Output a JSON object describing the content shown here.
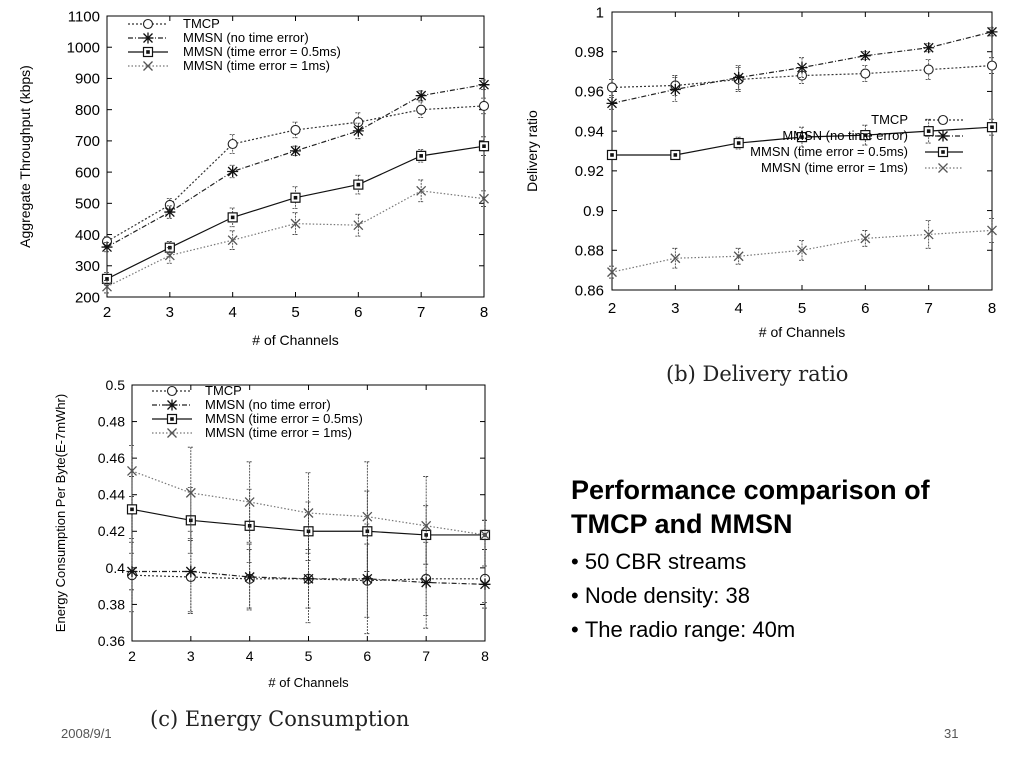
{
  "slide": {
    "title_line1": "Performance comparison of",
    "title_line2": "TMCP and MMSN",
    "bullets": [
      "50 CBR streams",
      "Node density: 38",
      "The radio range: 40m"
    ],
    "caption_b": "(b) Delivery ratio",
    "caption_c": "(c) Energy Consumption",
    "date": "2008/9/1",
    "page": "31"
  },
  "chart_data": [
    {
      "type": "line",
      "title": "",
      "xlabel": "# of Channels",
      "ylabel": "Aggregate Throughput (kbps)",
      "x": [
        2,
        3,
        4,
        5,
        6,
        7,
        8
      ],
      "xlim": [
        2,
        8
      ],
      "ylim": [
        200,
        1100
      ],
      "xticks": [
        2,
        3,
        4,
        5,
        6,
        7,
        8
      ],
      "yticks": [
        200,
        300,
        400,
        500,
        600,
        700,
        800,
        900,
        1000,
        1100
      ],
      "legend_position": "top-left",
      "series": [
        {
          "name": "TMCP",
          "marker": "circle",
          "style": "dotted",
          "values": [
            378,
            495,
            690,
            735,
            760,
            800,
            812
          ],
          "err": [
            15,
            20,
            30,
            25,
            30,
            25,
            25
          ]
        },
        {
          "name": "MMSN (no time error)",
          "marker": "asterisk",
          "style": "dashdot",
          "values": [
            360,
            472,
            602,
            668,
            732,
            845,
            880
          ],
          "err": [
            15,
            20,
            20,
            15,
            25,
            15,
            15
          ]
        },
        {
          "name": "MMSN (time error = 0.5ms)",
          "marker": "square",
          "style": "solid",
          "values": [
            258,
            358,
            455,
            518,
            560,
            652,
            683
          ],
          "err": [
            20,
            20,
            30,
            35,
            30,
            20,
            30
          ]
        },
        {
          "name": "MMSN (time error = 1ms)",
          "marker": "cross",
          "style": "dotted-gray",
          "values": [
            233,
            333,
            382,
            435,
            430,
            540,
            515
          ],
          "err": [
            20,
            25,
            30,
            35,
            35,
            35,
            25
          ]
        }
      ]
    },
    {
      "type": "line",
      "title": "",
      "xlabel": "# of Channels",
      "ylabel": "Delivery ratio",
      "x": [
        2,
        3,
        4,
        5,
        6,
        7,
        8
      ],
      "xlim": [
        2,
        8
      ],
      "ylim": [
        0.86,
        1
      ],
      "xticks": [
        2,
        3,
        4,
        5,
        6,
        7,
        8
      ],
      "yticks": [
        0.86,
        0.88,
        0.9,
        0.92,
        0.94,
        0.96,
        0.98,
        1
      ],
      "legend_position": "right",
      "series": [
        {
          "name": "TMCP",
          "marker": "circle",
          "style": "dotted",
          "values": [
            0.962,
            0.963,
            0.966,
            0.968,
            0.969,
            0.971,
            0.973
          ],
          "err": [
            0.004,
            0.005,
            0.006,
            0.004,
            0.004,
            0.005,
            0.004
          ]
        },
        {
          "name": "MMSN (no time error)",
          "marker": "asterisk",
          "style": "dashdot",
          "values": [
            0.954,
            0.961,
            0.967,
            0.972,
            0.978,
            0.982,
            0.99
          ],
          "err": [
            0.003,
            0.006,
            0.006,
            0.005,
            0.002,
            0.002,
            0.002
          ]
        },
        {
          "name": "MMSN (time error = 0.5ms)",
          "marker": "square",
          "style": "solid",
          "values": [
            0.928,
            0.928,
            0.934,
            0.937,
            0.938,
            0.94,
            0.942
          ],
          "err": [
            0.001,
            0.001,
            0.003,
            0.005,
            0.005,
            0.006,
            0.004
          ]
        },
        {
          "name": "MMSN (time error = 1ms)",
          "marker": "cross",
          "style": "dotted-gray",
          "values": [
            0.869,
            0.876,
            0.877,
            0.88,
            0.886,
            0.888,
            0.89
          ],
          "err": [
            0.003,
            0.005,
            0.004,
            0.005,
            0.004,
            0.007,
            0.006
          ]
        }
      ]
    },
    {
      "type": "line",
      "title": "",
      "xlabel": "# of Channels",
      "ylabel": "Energy Consumption Per Byte(E-7mWhr)",
      "x": [
        2,
        3,
        4,
        5,
        6,
        7,
        8
      ],
      "xlim": [
        2,
        8
      ],
      "ylim": [
        0.36,
        0.5
      ],
      "xticks": [
        2,
        3,
        4,
        5,
        6,
        7,
        8
      ],
      "yticks": [
        0.36,
        0.38,
        0.4,
        0.42,
        0.44,
        0.46,
        0.48,
        0.5
      ],
      "legend_position": "top-left",
      "series": [
        {
          "name": "TMCP",
          "marker": "circle",
          "style": "dotted",
          "values": [
            0.396,
            0.395,
            0.394,
            0.394,
            0.393,
            0.394,
            0.394
          ],
          "err": [
            0.02,
            0.02,
            0.016,
            0.016,
            0.02,
            0.02,
            0.016
          ]
        },
        {
          "name": "MMSN (no time error)",
          "marker": "asterisk",
          "style": "dashdot",
          "values": [
            0.398,
            0.398,
            0.395,
            0.394,
            0.394,
            0.392,
            0.391
          ],
          "err": [
            0.01,
            0.022,
            0.018,
            0.024,
            0.03,
            0.025,
            0.01
          ]
        },
        {
          "name": "MMSN (time error = 0.5ms)",
          "marker": "square",
          "style": "solid",
          "values": [
            0.432,
            0.426,
            0.423,
            0.42,
            0.42,
            0.418,
            0.418
          ],
          "err": [
            0.018,
            0.018,
            0.02,
            0.016,
            0.022,
            0.016,
            0.008
          ]
        },
        {
          "name": "MMSN (time error = 1ms)",
          "marker": "cross",
          "style": "dotted-gray",
          "values": [
            0.453,
            0.441,
            0.436,
            0.43,
            0.428,
            0.423,
            0.418
          ],
          "err": [
            0.014,
            0.025,
            0.022,
            0.022,
            0.03,
            0.027,
            0.008
          ]
        }
      ]
    }
  ]
}
